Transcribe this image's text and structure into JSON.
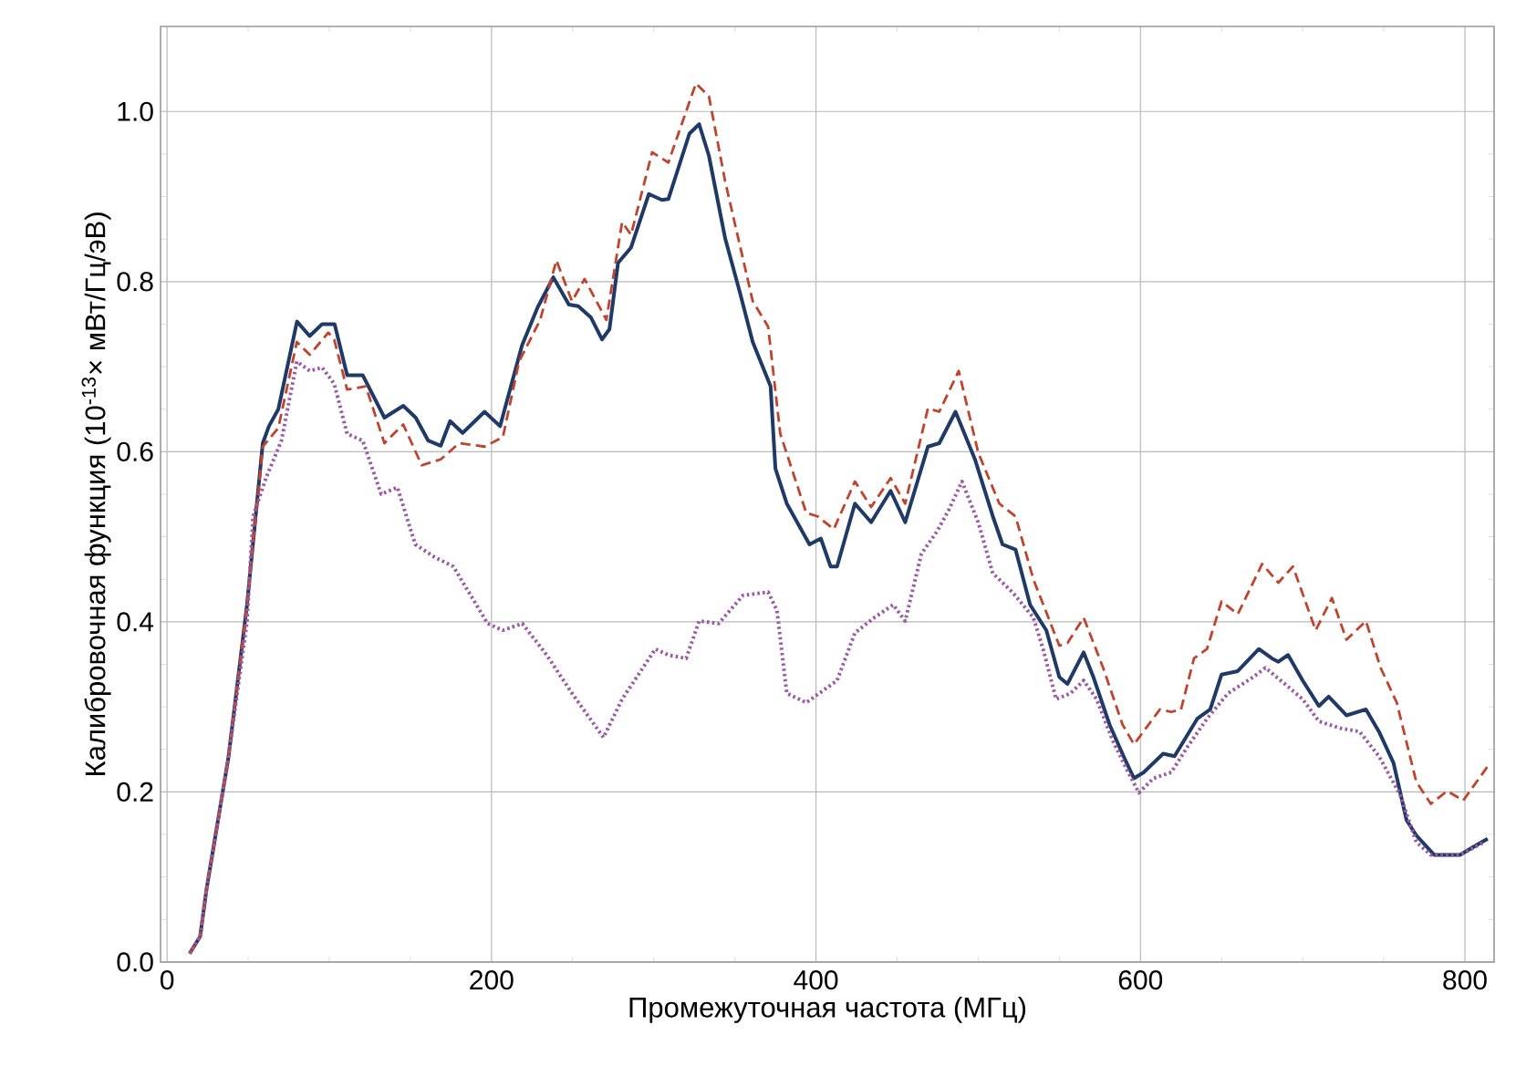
{
  "chart_data": {
    "type": "line",
    "xlabel": "Промежуточная частота (МГц)",
    "ylabel": "Калибровочная функция (10$^{-13}$× мВт/Гц/эВ)",
    "xlim": [
      -4,
      818
    ],
    "ylim": [
      0,
      1.1
    ],
    "xticks": [
      0,
      200,
      400,
      600,
      800
    ],
    "yticks": [
      {
        "value": 0,
        "label": "0.0"
      },
      0.2,
      0.4,
      0.6,
      0.8,
      {
        "value": 1,
        "label": "1.0"
      }
    ],
    "grid": true,
    "marker": "none",
    "series": [
      {
        "color": "#1f3a66",
        "line_style": "solid",
        "x": [
          13.9,
          20.4,
          24.3,
          37.8,
          49.3,
          59,
          62.8,
          68.6,
          80.1,
          87.9,
          95.6,
          103.3,
          111,
          120.6,
          134,
          145.6,
          153.3,
          161,
          168.7,
          174.5,
          182.2,
          195.7,
          205.3,
          218.8,
          228.5,
          238.1,
          247.7,
          253.5,
          261.2,
          268.1,
          272.7,
          278,
          286,
          297,
          305,
          309,
          322,
          328,
          334,
          344,
          353,
          361,
          372,
          375,
          382,
          396,
          403,
          409,
          413,
          424,
          434,
          446,
          455,
          469,
          476,
          486,
          498,
          509,
          515,
          523,
          532,
          542,
          550,
          555,
          565,
          571,
          581,
          590.5,
          596,
          602,
          614,
          621,
          635,
          643,
          650,
          660,
          673,
          681,
          685,
          691,
          700,
          710,
          716,
          727,
          739,
          747,
          756,
          764,
          770,
          781,
          797,
          804,
          814
        ],
        "values": [
          0.01,
          0.03,
          0.085,
          0.24,
          0.42,
          0.61,
          0.63,
          0.65,
          0.753,
          0.736,
          0.75,
          0.75,
          0.69,
          0.69,
          0.64,
          0.654,
          0.64,
          0.613,
          0.607,
          0.636,
          0.622,
          0.647,
          0.63,
          0.725,
          0.77,
          0.805,
          0.773,
          0.771,
          0.758,
          0.732,
          0.744,
          0.822,
          0.84,
          0.903,
          0.896,
          0.897,
          0.974,
          0.985,
          0.948,
          0.851,
          0.788,
          0.729,
          0.677,
          0.58,
          0.539,
          0.491,
          0.498,
          0.465,
          0.465,
          0.539,
          0.517,
          0.554,
          0.517,
          0.606,
          0.61,
          0.647,
          0.591,
          0.524,
          0.491,
          0.485,
          0.42,
          0.39,
          0.335,
          0.327,
          0.364,
          0.335,
          0.279,
          0.238,
          0.216,
          0.223,
          0.245,
          0.242,
          0.286,
          0.297,
          0.338,
          0.342,
          0.368,
          0.357,
          0.353,
          0.361,
          0.331,
          0.301,
          0.312,
          0.29,
          0.297,
          0.271,
          0.234,
          0.167,
          0.149,
          0.126,
          0.126,
          0.134,
          0.145
        ]
      },
      {
        "color": "#c0432e",
        "line_style": "dashed",
        "x": [
          13.9,
          20.4,
          24.3,
          37.8,
          49.3,
          59,
          68.6,
          80,
          88,
          99.4,
          103,
          111,
          122.5,
          134,
          145.6,
          157,
          168.7,
          180,
          195.7,
          207,
          217,
          230,
          240,
          249.6,
          257.4,
          270.8,
          280.5,
          286,
          299,
          309,
          326,
          334,
          344,
          361,
          370.5,
          378,
          394,
          401,
          411,
          424,
          434,
          446,
          455,
          469,
          476,
          488,
          500,
          513,
          523,
          534,
          550,
          555,
          565,
          577,
          589,
          596,
          612,
          619,
          625,
          633,
          641,
          650,
          660,
          675,
          685,
          694,
          708,
          718,
          727,
          739,
          748,
          758,
          770,
          779,
          789,
          799,
          814
        ],
        "values": [
          0.01,
          0.03,
          0.085,
          0.24,
          0.42,
          0.606,
          0.628,
          0.729,
          0.714,
          0.74,
          0.732,
          0.673,
          0.677,
          0.61,
          0.632,
          0.584,
          0.591,
          0.61,
          0.606,
          0.617,
          0.706,
          0.755,
          0.825,
          0.777,
          0.803,
          0.755,
          0.87,
          0.855,
          0.952,
          0.94,
          1.033,
          1.018,
          0.918,
          0.777,
          0.747,
          0.621,
          0.528,
          0.524,
          0.509,
          0.565,
          0.535,
          0.569,
          0.539,
          0.651,
          0.647,
          0.695,
          0.599,
          0.539,
          0.524,
          0.45,
          0.372,
          0.375,
          0.405,
          0.346,
          0.279,
          0.256,
          0.297,
          0.294,
          0.297,
          0.357,
          0.368,
          0.424,
          0.409,
          0.468,
          0.446,
          0.465,
          0.39,
          0.428,
          0.379,
          0.401,
          0.346,
          0.305,
          0.212,
          0.186,
          0.201,
          0.19,
          0.23
        ]
      },
      {
        "color": "#9a5aa5",
        "line_style": "dotted",
        "x": [
          13.9,
          20.4,
          24.3,
          37.8,
          49.3,
          53,
          61,
          70.5,
          80,
          88,
          95.6,
          103,
          111,
          120.6,
          132,
          142,
          153,
          165,
          176.5,
          197.6,
          207,
          219,
          234,
          249.6,
          269,
          280.5,
          301,
          309,
          320,
          328,
          340,
          355,
          370.5,
          376,
          382,
          394,
          413,
          424,
          436,
          447.6,
          455,
          465,
          474.5,
          482,
          490,
          500,
          509,
          521,
          534,
          540,
          548,
          557,
          565,
          573,
          583,
          592.5,
          599,
          608,
          619,
          629,
          641,
          654,
          669.5,
          677,
          689,
          700,
          710,
          723,
          735,
          747,
          760,
          770,
          779,
          797,
          812
        ],
        "values": [
          0.01,
          0.03,
          0.085,
          0.24,
          0.4,
          0.524,
          0.569,
          0.613,
          0.706,
          0.695,
          0.699,
          0.68,
          0.621,
          0.613,
          0.55,
          0.558,
          0.491,
          0.476,
          0.465,
          0.398,
          0.39,
          0.398,
          0.361,
          0.316,
          0.264,
          0.309,
          0.368,
          0.361,
          0.357,
          0.401,
          0.398,
          0.431,
          0.435,
          0.413,
          0.316,
          0.305,
          0.331,
          0.387,
          0.405,
          0.42,
          0.401,
          0.48,
          0.506,
          0.532,
          0.565,
          0.517,
          0.457,
          0.435,
          0.405,
          0.368,
          0.309,
          0.316,
          0.331,
          0.309,
          0.26,
          0.223,
          0.199,
          0.216,
          0.223,
          0.253,
          0.286,
          0.316,
          0.335,
          0.346,
          0.327,
          0.309,
          0.283,
          0.275,
          0.271,
          0.242,
          0.197,
          0.141,
          0.126,
          0.126,
          0.141
        ]
      }
    ]
  }
}
